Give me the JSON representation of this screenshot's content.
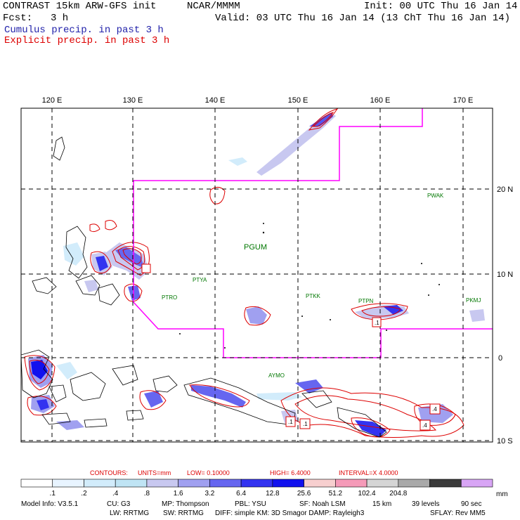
{
  "header": {
    "title": "CONTRAST 15km ARW-GFS init",
    "org": "NCAR/MMMM",
    "init": "Init: 00 UTC Thu 16 Jan 14",
    "fcst_label": "Fcst:",
    "fcst_value": "3 h",
    "valid": "Valid: 03 UTC Thu 16 Jan 14 (13 ChT Thu 16 Jan 14)",
    "legend_cumulus": "Cumulus precip. in past 3 h",
    "legend_explicit": "Explicit precip. in past 3 h"
  },
  "colors": {
    "cumulus": "#2222aa",
    "explicit": "#dd0000",
    "domain_box": "#ff00ff",
    "station": "#007700"
  },
  "map": {
    "lon_ticks": [
      "120 E",
      "130 E",
      "140 E",
      "150 E",
      "160 E",
      "170 E"
    ],
    "lat_ticks": [
      "20 N",
      "10 N",
      "0",
      "10 S"
    ],
    "stations": [
      {
        "id": "PGUM",
        "big": true
      },
      {
        "id": "PWAK",
        "big": false
      },
      {
        "id": "PTYA",
        "big": false
      },
      {
        "id": "PTRO",
        "big": false
      },
      {
        "id": "PTKK",
        "big": false
      },
      {
        "id": "PTPN",
        "big": false
      },
      {
        "id": "PKMJ",
        "big": false
      },
      {
        "id": "AYMO",
        "big": false
      }
    ],
    "box_labels": [
      ".1",
      ".1",
      ".1",
      ".4",
      ".4"
    ]
  },
  "contours": {
    "label": "CONTOURS:",
    "units": "UNITS=mm",
    "low": "LOW= 0.10000",
    "high": "HIGH= 6.4000",
    "interval": "INTERVAL=X 4.0000"
  },
  "colorbar": {
    "colors": [
      "#ffffff",
      "#e8f4ff",
      "#d2ecfb",
      "#bfe4f4",
      "#c8c8f0",
      "#a0a0f0",
      "#6666f0",
      "#3333f0",
      "#1111ee",
      "#f7cfcf",
      "#f59ab8",
      "#d5d5d5",
      "#a9a9a9",
      "#3a3a3a",
      "#d8a5f5"
    ],
    "labels": [
      ".1",
      ".2",
      ".4",
      ".8",
      "1.6",
      "3.2",
      "6.4",
      "12.8",
      "25.6",
      "51.2",
      "102.4",
      "204.8"
    ],
    "unit": "mm"
  },
  "footer": {
    "line1": [
      "Model Info: V3.5.1",
      "CU: G3",
      "MP: Thompson",
      "PBL: YSU",
      "SF: Noah LSM",
      "15 km",
      "39 levels",
      "90 sec"
    ],
    "line2": [
      "LW: RRTMG",
      "SW: RRTMG",
      "DIFF: simple KM: 3D Smagor DAMP: Rayleigh3",
      "SFLAY: Rev MM5"
    ]
  }
}
